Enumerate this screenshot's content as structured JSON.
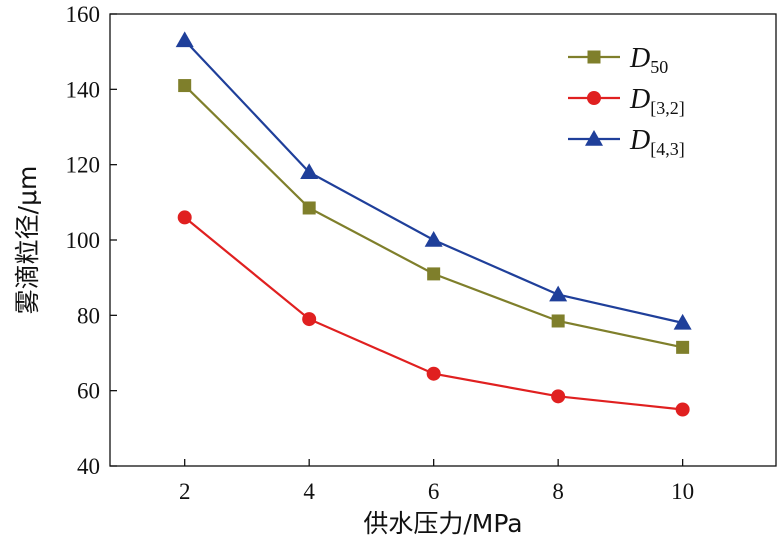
{
  "chart_data": {
    "type": "line",
    "title": "",
    "xlabel": "供水压力/MPa",
    "ylabel": "雾滴粒径/μm",
    "xlim": [
      0.8,
      11.5
    ],
    "ylim": [
      40,
      160
    ],
    "x_ticks": [
      2,
      4,
      6,
      8,
      10
    ],
    "y_ticks": [
      40,
      60,
      80,
      100,
      120,
      140,
      160
    ],
    "grid": false,
    "legend_position": "top-right",
    "x": [
      2,
      4,
      6,
      8,
      10
    ],
    "series": [
      {
        "name_main": "D",
        "name_sub": "50",
        "marker": "square",
        "color": "#7f7f2b",
        "values": [
          141,
          108.5,
          91,
          78.5,
          71.5
        ]
      },
      {
        "name_main": "D",
        "name_sub": "[3,2]",
        "marker": "circle",
        "color": "#e02020",
        "values": [
          106,
          79,
          64.5,
          58.5,
          55
        ]
      },
      {
        "name_main": "D",
        "name_sub": "[4,3]",
        "marker": "triangle",
        "color": "#1f3f9a",
        "values": [
          153,
          118,
          100,
          85.5,
          78
        ]
      }
    ]
  }
}
